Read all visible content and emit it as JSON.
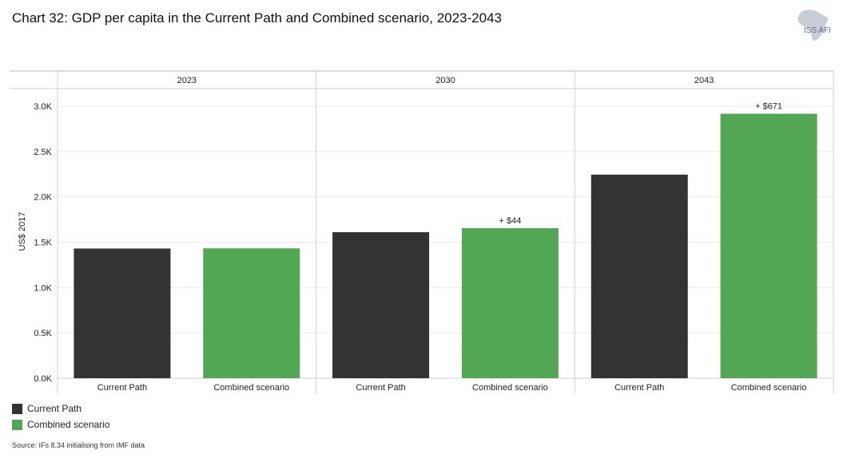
{
  "header": {
    "title": "Chart 32: GDP per capita in the Current Path and Combined scenario, 2023-2043",
    "logo_text": "ISS AFI"
  },
  "legend": {
    "items": [
      {
        "label": "Current Path",
        "color": "#333333"
      },
      {
        "label": "Combined scenario",
        "color": "#53a653"
      }
    ]
  },
  "source": "Source: IFs 8.34 initialising from IMF data",
  "chart_data": {
    "type": "bar",
    "ylabel": "US$ 2017",
    "ylim": [
      0,
      3000
    ],
    "yticks": [
      0,
      500,
      1000,
      1500,
      2000,
      2500,
      3000
    ],
    "ytick_labels": [
      "0.0K",
      "0.5K",
      "1.0K",
      "1.5K",
      "2.0K",
      "2.5K",
      "3.0K"
    ],
    "grid": true,
    "legend_placement": "bottom-left",
    "panels": [
      {
        "label": "2023",
        "categories": [
          "Current Path",
          "Combined scenario"
        ],
        "values": [
          1430,
          1432
        ],
        "annotation": ""
      },
      {
        "label": "2030",
        "categories": [
          "Current Path",
          "Combined scenario"
        ],
        "values": [
          1610,
          1654
        ],
        "annotation": "+ $44"
      },
      {
        "label": "2043",
        "categories": [
          "Current Path",
          "Combined scenario"
        ],
        "values": [
          2245,
          2916
        ],
        "annotation": "+ $671"
      }
    ],
    "series_colors": [
      "#333333",
      "#53a653"
    ]
  }
}
